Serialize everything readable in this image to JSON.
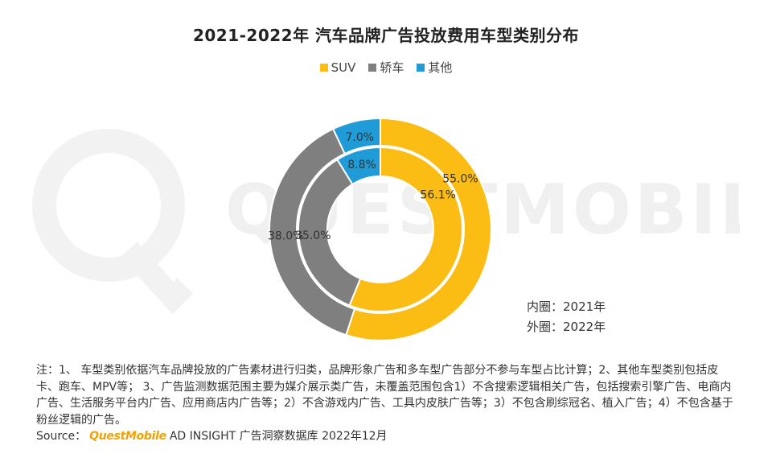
{
  "chart_data": {
    "type": "pie",
    "title": "2021-2022年 汽车品牌广告投放费用车型类别分布",
    "categories": [
      "SUV",
      "轿车",
      "其他"
    ],
    "series": [
      {
        "name": "2021年",
        "values": [
          56.1,
          35.0,
          8.8
        ],
        "labels": [
          "56.1%",
          "35.0%",
          "8.8%"
        ]
      },
      {
        "name": "2022年",
        "values": [
          55.0,
          38.0,
          7.0
        ],
        "labels": [
          "55.0%",
          "38.0%",
          "7.0%"
        ]
      }
    ],
    "colors": [
      "#fbbc14",
      "#7f7f7f",
      "#1f9bd7"
    ],
    "legend_position": "top-center"
  },
  "ring_notes": {
    "inner": "内圈：2021年",
    "outer": "外圈：2022年"
  },
  "notes": "注：1、 车型类别依据汽车品牌投放的广告素材进行归类，品牌形象广告和多车型广告部分不参与车型占比计算；2、其他车型类别包括皮卡、跑车、MPV等；  3、广告监测数据范围主要为媒介展示类广告，未覆盖范围包含1）不含搜索逻辑相关广告，包括搜索引擎广告、电商内广告、生活服务平台内广告、应用商店内广告等；2）不含游戏内广告、工具内皮肤广告等；3）不包含刷综冠名、植入广告；4）不包含基于粉丝逻辑的广告。",
  "source": {
    "prefix": "Source：",
    "brand": "QuestMobile",
    "suffix": "AD INSIGHT 广告洞察数据库 2022年12月"
  },
  "watermark": "QUESTMOBILE"
}
